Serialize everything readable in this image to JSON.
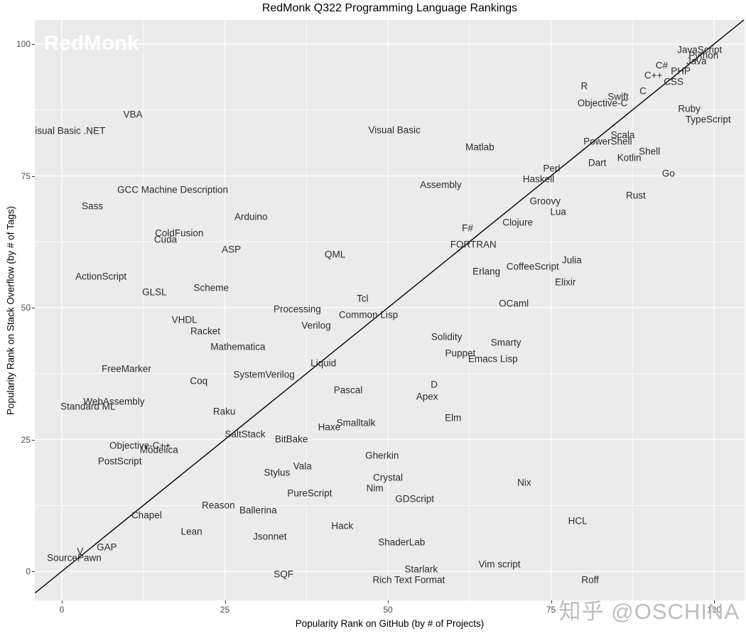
{
  "title": "RedMonk Q322 Programming Language Rankings",
  "branding": {
    "logo": "RedMonk",
    "credit": "知乎 @OSCHINA"
  },
  "axes": {
    "x": {
      "label": "Popularity Rank on GitHub (by # of Projects)",
      "ticks": [
        0,
        25,
        50,
        75,
        100
      ]
    },
    "y": {
      "label": "Popularity Rank on Stack Overflow (by # of Tags)",
      "ticks": [
        0,
        25,
        50,
        75,
        100
      ]
    }
  },
  "colors": {
    "panel_bg": "#EBEBEB",
    "grid_major": "#FFFFFF",
    "grid_minor": "#FFFFFF",
    "diagonal_line": "#000000",
    "label_text": "#2B2B2B",
    "tick_text": "#4D4D4D",
    "logo_text": "#FFFFFF",
    "credit_text": "#BDBDBD"
  },
  "chart_data": {
    "type": "scatter",
    "title": "RedMonk Q322 Programming Language Rankings",
    "xlabel": "Popularity Rank on GitHub (by # of Projects)",
    "ylabel": "Popularity Rank on Stack Overflow (by # of Tags)",
    "xlim": [
      -4.1,
      104.7
    ],
    "ylim": [
      -5.5,
      104.6
    ],
    "grid": true,
    "legend": false,
    "point_style": "text-label",
    "diagonal_line": {
      "x1": -4.1,
      "y1": -4.1,
      "x2": 104.6,
      "y2": 104.6
    },
    "points": [
      {
        "label": "JavaScript",
        "x": 97.8,
        "y": 98.9
      },
      {
        "label": "Python",
        "x": 98.4,
        "y": 97.8
      },
      {
        "label": "Java",
        "x": 97.3,
        "y": 96.8
      },
      {
        "label": "C#",
        "x": 92.0,
        "y": 96.0
      },
      {
        "label": "PHP",
        "x": 94.9,
        "y": 94.9
      },
      {
        "label": "C++",
        "x": 90.7,
        "y": 94.1
      },
      {
        "label": "CSS",
        "x": 93.8,
        "y": 92.9
      },
      {
        "label": "C",
        "x": 89.1,
        "y": 91.1
      },
      {
        "label": "R",
        "x": 80.1,
        "y": 92.0
      },
      {
        "label": "Swift",
        "x": 85.3,
        "y": 90.0
      },
      {
        "label": "Objective-C",
        "x": 82.9,
        "y": 88.8
      },
      {
        "label": "Ruby",
        "x": 96.2,
        "y": 87.7
      },
      {
        "label": "TypeScript",
        "x": 99.1,
        "y": 85.7
      },
      {
        "label": "Scala",
        "x": 86.0,
        "y": 82.7
      },
      {
        "label": "PowerShell",
        "x": 83.7,
        "y": 81.5
      },
      {
        "label": "Shell",
        "x": 90.1,
        "y": 79.6
      },
      {
        "label": "Kotlin",
        "x": 87.0,
        "y": 78.4
      },
      {
        "label": "Dart",
        "x": 82.1,
        "y": 77.5
      },
      {
        "label": "Perl",
        "x": 75.1,
        "y": 76.4
      },
      {
        "label": "Haskell",
        "x": 73.1,
        "y": 74.4
      },
      {
        "label": "Go",
        "x": 93.0,
        "y": 75.5
      },
      {
        "label": "Rust",
        "x": 88.0,
        "y": 71.3
      },
      {
        "label": "Groovy",
        "x": 74.1,
        "y": 70.2
      },
      {
        "label": "Lua",
        "x": 76.1,
        "y": 68.2
      },
      {
        "label": "Clojure",
        "x": 69.9,
        "y": 66.2
      },
      {
        "label": "VBA",
        "x": 10.9,
        "y": 86.7
      },
      {
        "label": "Visual Basic .NET",
        "x": 0.8,
        "y": 83.6
      },
      {
        "label": "Visual Basic",
        "x": 51.0,
        "y": 83.7
      },
      {
        "label": "Matlab",
        "x": 64.1,
        "y": 80.5
      },
      {
        "label": "GCC Machine Description",
        "x": 17.0,
        "y": 72.4
      },
      {
        "label": "Sass",
        "x": 4.7,
        "y": 69.3
      },
      {
        "label": "Assembly",
        "x": 58.1,
        "y": 73.3
      },
      {
        "label": "Arduino",
        "x": 29.0,
        "y": 67.3
      },
      {
        "label": "ColdFusion",
        "x": 18.0,
        "y": 64.2
      },
      {
        "label": "Cuda",
        "x": 15.9,
        "y": 62.9
      },
      {
        "label": "ASP",
        "x": 26.0,
        "y": 61.1
      },
      {
        "label": "F#",
        "x": 62.2,
        "y": 65.1
      },
      {
        "label": "FORTRAN",
        "x": 63.1,
        "y": 62.0
      },
      {
        "label": "ActionScript",
        "x": 6.0,
        "y": 55.9
      },
      {
        "label": "GLSL",
        "x": 14.2,
        "y": 53.0
      },
      {
        "label": "Scheme",
        "x": 22.9,
        "y": 53.8
      },
      {
        "label": "Erlang",
        "x": 65.1,
        "y": 56.9
      },
      {
        "label": "CoffeeScript",
        "x": 72.2,
        "y": 57.8
      },
      {
        "label": "Julia",
        "x": 78.2,
        "y": 59.0
      },
      {
        "label": "Elixir",
        "x": 77.2,
        "y": 54.9
      },
      {
        "label": "OCaml",
        "x": 69.3,
        "y": 50.8
      },
      {
        "label": "QML",
        "x": 41.9,
        "y": 60.1
      },
      {
        "label": "Tcl",
        "x": 46.1,
        "y": 51.8
      },
      {
        "label": "Processing",
        "x": 36.1,
        "y": 49.7
      },
      {
        "label": "Common Lisp",
        "x": 47.0,
        "y": 48.7
      },
      {
        "label": "VHDL",
        "x": 18.8,
        "y": 47.7
      },
      {
        "label": "Verilog",
        "x": 39.0,
        "y": 46.6
      },
      {
        "label": "Racket",
        "x": 22.0,
        "y": 45.6
      },
      {
        "label": "Mathematica",
        "x": 27.0,
        "y": 42.6
      },
      {
        "label": "Solidity",
        "x": 59.0,
        "y": 44.5
      },
      {
        "label": "Smarty",
        "x": 68.1,
        "y": 43.4
      },
      {
        "label": "Puppet",
        "x": 61.1,
        "y": 41.4
      },
      {
        "label": "Emacs Lisp",
        "x": 66.1,
        "y": 40.3
      },
      {
        "label": "Liquid",
        "x": 40.1,
        "y": 39.5
      },
      {
        "label": "FreeMarker",
        "x": 9.9,
        "y": 38.4
      },
      {
        "label": "SystemVerilog",
        "x": 31.0,
        "y": 37.3
      },
      {
        "label": "Coq",
        "x": 21.0,
        "y": 36.1
      },
      {
        "label": "WebAssembly",
        "x": 8.0,
        "y": 32.2
      },
      {
        "label": "Standard ML",
        "x": 4.0,
        "y": 31.3
      },
      {
        "label": "Pascal",
        "x": 43.9,
        "y": 34.4
      },
      {
        "label": "D",
        "x": 57.1,
        "y": 35.4
      },
      {
        "label": "Apex",
        "x": 56.0,
        "y": 33.2
      },
      {
        "label": "Raku",
        "x": 24.9,
        "y": 30.3
      },
      {
        "label": "Elm",
        "x": 60.0,
        "y": 29.1
      },
      {
        "label": "Smalltalk",
        "x": 45.1,
        "y": 28.2
      },
      {
        "label": "Haxe",
        "x": 41.0,
        "y": 27.4
      },
      {
        "label": "SaltStack",
        "x": 28.1,
        "y": 26.0
      },
      {
        "label": "BitBake",
        "x": 35.2,
        "y": 25.1
      },
      {
        "label": "Objective-C++",
        "x": 12.0,
        "y": 23.9
      },
      {
        "label": "Modelica",
        "x": 14.9,
        "y": 23.0
      },
      {
        "label": "PostScript",
        "x": 8.9,
        "y": 20.9
      },
      {
        "label": "Gherkin",
        "x": 49.1,
        "y": 22.0
      },
      {
        "label": "Stylus",
        "x": 33.0,
        "y": 18.7
      },
      {
        "label": "Vala",
        "x": 36.9,
        "y": 19.9
      },
      {
        "label": "Crystal",
        "x": 50.0,
        "y": 17.8
      },
      {
        "label": "Nim",
        "x": 48.0,
        "y": 15.8
      },
      {
        "label": "PureScript",
        "x": 38.0,
        "y": 14.8
      },
      {
        "label": "GDScript",
        "x": 54.1,
        "y": 13.7
      },
      {
        "label": "Reason",
        "x": 24.0,
        "y": 12.5
      },
      {
        "label": "Ballerina",
        "x": 30.1,
        "y": 11.6
      },
      {
        "label": "Chapel",
        "x": 13.0,
        "y": 10.6
      },
      {
        "label": "Nix",
        "x": 70.9,
        "y": 16.8
      },
      {
        "label": "Lean",
        "x": 19.9,
        "y": 7.5
      },
      {
        "label": "Jsonnet",
        "x": 31.9,
        "y": 6.6
      },
      {
        "label": "Hack",
        "x": 43.0,
        "y": 8.6
      },
      {
        "label": "HCL",
        "x": 79.1,
        "y": 9.6
      },
      {
        "label": "ShaderLab",
        "x": 52.1,
        "y": 5.5
      },
      {
        "label": "GAP",
        "x": 6.9,
        "y": 4.6
      },
      {
        "label": "V",
        "x": 2.8,
        "y": 3.8
      },
      {
        "label": "SourcePawn",
        "x": 1.9,
        "y": 2.6
      },
      {
        "label": "SQF",
        "x": 34.0,
        "y": -0.5
      },
      {
        "label": "Starlark",
        "x": 55.1,
        "y": 0.4
      },
      {
        "label": "Rich Text Format",
        "x": 53.2,
        "y": -1.6
      },
      {
        "label": "Vim script",
        "x": 67.1,
        "y": 1.3
      },
      {
        "label": "Roff",
        "x": 81.0,
        "y": -1.6
      }
    ]
  }
}
